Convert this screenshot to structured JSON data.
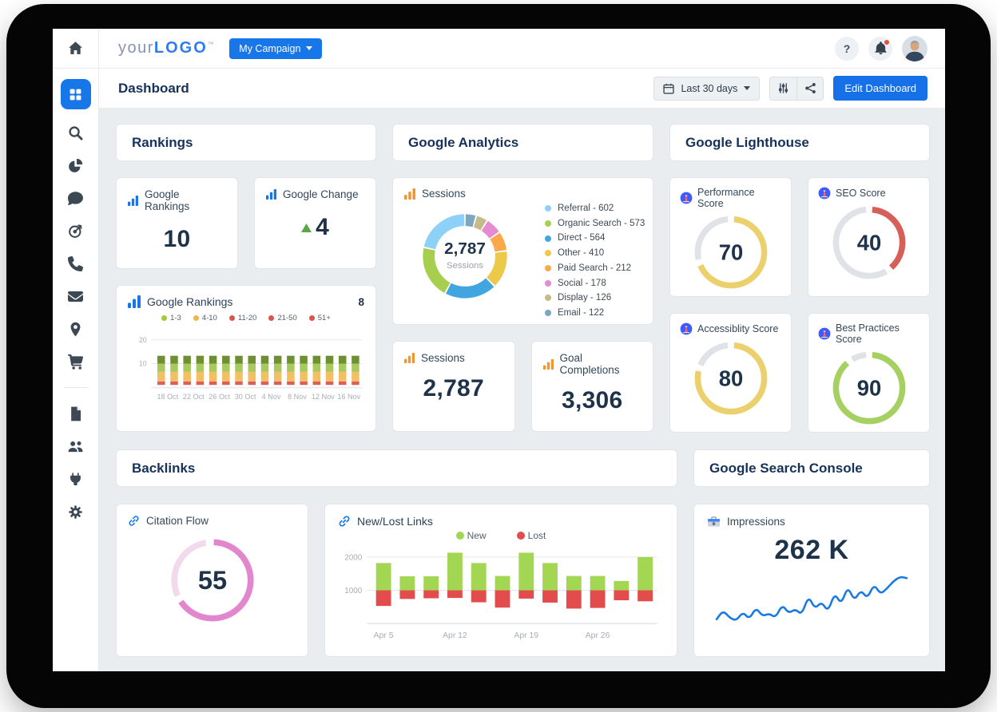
{
  "window": {
    "frame_color": "#050505"
  },
  "sidebar": {
    "items": [
      "home",
      "dashboard",
      "search",
      "analytics-pie",
      "reviews-chat",
      "goals-target",
      "calls-phone",
      "email",
      "local-map",
      "ecommerce-cart",
      "reports-document",
      "team-users",
      "integrations-plug",
      "settings-gear"
    ],
    "active_item": "dashboard"
  },
  "header": {
    "logo": {
      "prefix": "your",
      "bold": "LOGO",
      "tm": "™"
    },
    "campaign_button": "My Campaign",
    "help_label": "?"
  },
  "toolbar": {
    "title": "Dashboard",
    "date_range": "Last 30 days",
    "edit_button": "Edit Dashboard"
  },
  "sections": {
    "rankings": "Rankings",
    "analytics": "Google Analytics",
    "lighthouse": "Google Lighthouse",
    "backlinks": "Backlinks",
    "search_console": "Google Search Console"
  },
  "cards": {
    "google_rankings": {
      "title": "Google Rankings",
      "value": "10"
    },
    "google_change": {
      "title": "Google Change",
      "value": "4"
    },
    "rankings_chart": {
      "title": "Google Rankings",
      "badge": "8"
    },
    "sessions_donut": {
      "title": "Sessions"
    },
    "sessions_stat": {
      "title": "Sessions",
      "value": "2,787"
    },
    "goal_completions": {
      "title": "Goal Completions",
      "value": "3,306"
    },
    "citation_flow": {
      "title": "Citation Flow"
    },
    "new_lost": {
      "title": "New/Lost Links"
    },
    "impressions": {
      "title": "Impressions",
      "value": "262 K"
    }
  },
  "chart_data": [
    {
      "id": "google_rankings_over_time",
      "type": "bar",
      "stacked": true,
      "title": "Google Rankings",
      "x_tick_labels": [
        "18 Oct",
        "22 Oct",
        "26 Oct",
        "30 Oct",
        "4 Nov",
        "8 Nov",
        "12 Nov",
        "16 Nov"
      ],
      "bar_count": 16,
      "y_ticks": [
        20,
        10
      ],
      "ylim": [
        0,
        25
      ],
      "legend": [
        {
          "label": "1-3",
          "color": "#a4c93f"
        },
        {
          "label": "4-10",
          "color": "#f0b44e"
        },
        {
          "label": "11-20",
          "color": "#d9534f"
        },
        {
          "label": "21-50",
          "color": "#d9534f"
        },
        {
          "label": "51+",
          "color": "#d9534f"
        }
      ],
      "segments_per_bar": [
        {
          "from": 1,
          "to": 2.5,
          "color": "#d9605b"
        },
        {
          "from": 2.5,
          "to": 6.5,
          "color": "#f4bf62"
        },
        {
          "from": 6.5,
          "to": 10,
          "color": "#a9c95e"
        },
        {
          "from": 10,
          "to": 13.3,
          "color": "#6f8f33"
        }
      ]
    },
    {
      "id": "sessions_by_channel",
      "type": "pie",
      "center_value": "2,787",
      "center_label": "Sessions",
      "total": 2787,
      "slices": [
        {
          "label": "Referral",
          "value": 602,
          "color": "#8dd0f8"
        },
        {
          "label": "Organic Search",
          "value": 573,
          "color": "#a8ce50"
        },
        {
          "label": "Direct",
          "value": 564,
          "color": "#41a6e0"
        },
        {
          "label": "Other",
          "value": 410,
          "color": "#edc94b"
        },
        {
          "label": "Paid Search",
          "value": 212,
          "color": "#f9a84c"
        },
        {
          "label": "Social",
          "value": 178,
          "color": "#e78ad2"
        },
        {
          "label": "Display",
          "value": 126,
          "color": "#c6ba88"
        },
        {
          "label": "Email",
          "value": 122,
          "color": "#7ca7bf"
        }
      ]
    },
    {
      "id": "lighthouse_scores",
      "type": "gauge",
      "track_color": "#dfe2e6",
      "scores": [
        {
          "label": "Performance Score",
          "value": 70,
          "color": "#ecd06d"
        },
        {
          "label": "SEO Score",
          "value": 40,
          "color": "#d65f5a"
        },
        {
          "label": "Accessiblity Score",
          "value": 80,
          "color": "#ecd06d"
        },
        {
          "label": "Best Practices Score",
          "value": 90,
          "color": "#a6d061"
        }
      ]
    },
    {
      "id": "citation_flow",
      "type": "gauge",
      "value": 55,
      "color": "#e287ce",
      "color_light": "#f2d9ec"
    },
    {
      "id": "new_lost_links",
      "type": "bar",
      "stacked": true,
      "baseline": 1000,
      "y_ticks": [
        2000,
        1000
      ],
      "ylim": [
        0,
        2400
      ],
      "x_tick_labels": [
        "Apr 5",
        "Apr 12",
        "Apr 19",
        "Apr 26"
      ],
      "x_tick_indices": [
        0,
        3,
        6,
        9
      ],
      "series": [
        {
          "name": "New",
          "color": "#a3d653"
        },
        {
          "name": "Lost",
          "color": "#e24c4c"
        }
      ],
      "bars": [
        {
          "new_top": 1820,
          "lost_bottom": 530
        },
        {
          "new_top": 1420,
          "lost_bottom": 740
        },
        {
          "new_top": 1420,
          "lost_bottom": 760
        },
        {
          "new_top": 2130,
          "lost_bottom": 770
        },
        {
          "new_top": 1820,
          "lost_bottom": 640
        },
        {
          "new_top": 1430,
          "lost_bottom": 480
        },
        {
          "new_top": 2130,
          "lost_bottom": 750
        },
        {
          "new_top": 1820,
          "lost_bottom": 630
        },
        {
          "new_top": 1430,
          "lost_bottom": 450
        },
        {
          "new_top": 1430,
          "lost_bottom": 470
        },
        {
          "new_top": 1280,
          "lost_bottom": 700
        },
        {
          "new_top": 2000,
          "lost_bottom": 670
        }
      ]
    },
    {
      "id": "impressions_trend",
      "type": "line",
      "value_label": "262 K",
      "color": "#1a7ae4",
      "points": [
        10,
        22,
        12,
        8,
        20,
        10,
        26,
        14,
        18,
        12,
        30,
        18,
        24,
        16,
        42,
        24,
        34,
        20,
        46,
        30,
        55,
        35,
        50,
        38,
        58,
        44,
        52,
        62,
        68,
        66
      ]
    }
  ]
}
